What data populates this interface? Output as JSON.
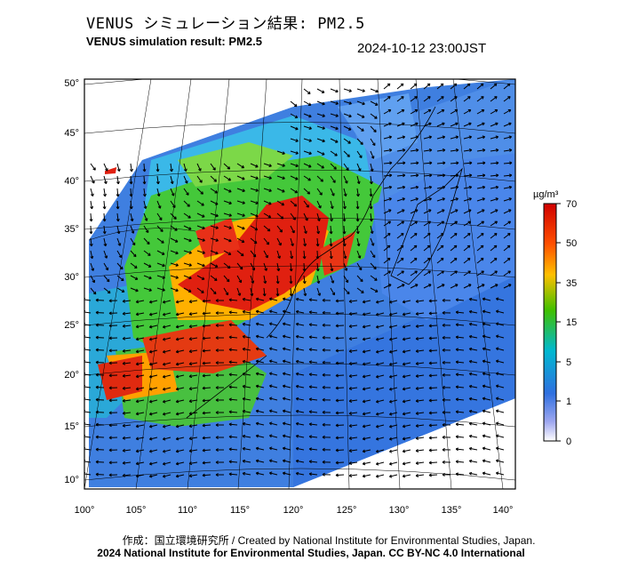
{
  "title_jp": "VENUS シミュレーション結果: PM2.5",
  "title_en": "VENUS simulation result: PM2.5",
  "timestamp": "2024-10-12 23:00JST",
  "map": {
    "lat_ticks": [
      "50°",
      "45°",
      "40°",
      "35°",
      "30°",
      "25°",
      "20°",
      "15°",
      "10°"
    ],
    "lon_ticks": [
      "100°",
      "105°",
      "110°",
      "115°",
      "120°",
      "125°",
      "130°",
      "135°",
      "140°"
    ]
  },
  "colorbar": {
    "unit": "µg/m³",
    "labels": [
      "70",
      "50",
      "35",
      "15",
      "5",
      "1",
      "0"
    ],
    "colors": [
      "#d00000",
      "#ff6000",
      "#ffd000",
      "#40c000",
      "#00b0d0",
      "#2060d0",
      "#ffffff"
    ]
  },
  "credit_line1": "作成：国立環境研究所 / Created by National Institute for Environmental Studies, Japan.",
  "credit_line2": "2024 National Institute for Environmental Studies, Japan. CC BY-NC 4.0 International"
}
